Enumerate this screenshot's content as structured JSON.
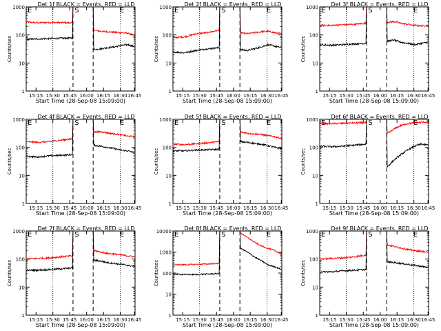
{
  "chart_data": [
    {
      "type": "line",
      "title": "Det 1f BLACK = Events, RED = LLD",
      "xlabel": "Start Time (28-Sep-08 15:09:00)",
      "ylabel": "Counts/sec",
      "yscale": "log",
      "ylim": [
        1,
        1000
      ],
      "xlim": [
        0,
        100
      ],
      "xticklabels": [
        "15:15",
        "15:30",
        "15:45",
        "16:00",
        "16:15",
        "16:30",
        "16:45"
      ],
      "yticklabels": [
        "1",
        "10",
        "100",
        "1000"
      ],
      "markers": {
        "E_left": "E",
        "S": "S",
        "E_right": "E"
      },
      "series": [
        {
          "name": "LLD",
          "color": "#ff0000",
          "pre": [
            290,
            270,
            280,
            275,
            270
          ],
          "post": [
            150,
            135,
            130,
            125,
            120,
            115,
            95
          ]
        },
        {
          "name": "Events",
          "color": "#000000",
          "pre": [
            70,
            72,
            74,
            76,
            78
          ],
          "post": [
            30,
            32,
            35,
            37,
            42,
            45,
            38
          ]
        }
      ]
    },
    {
      "type": "line",
      "title": "Det 2f BLACK = Events, RED = LLD",
      "xlabel": "Start Time (28-Sep-08 15:09:00)",
      "ylabel": "Counts/sec",
      "yscale": "log",
      "ylim": [
        1,
        1000
      ],
      "xlim": [
        0,
        100
      ],
      "xticklabels": [
        "15:15",
        "15:30",
        "15:45",
        "16:00",
        "16:15",
        "16:30",
        "16:45"
      ],
      "yticklabels": [
        "1",
        "10",
        "100",
        "1000"
      ],
      "markers": {
        "E_left": "E",
        "S": "S",
        "E_right": "E"
      },
      "series": [
        {
          "name": "LLD",
          "color": "#ff0000",
          "pre": [
            80,
            85,
            110,
            120,
            150
          ],
          "post": [
            120,
            110,
            120,
            130,
            135,
            120,
            110
          ]
        },
        {
          "name": "Events",
          "color": "#000000",
          "pre": [
            25,
            23,
            28,
            32,
            35
          ],
          "post": [
            30,
            28,
            32,
            37,
            45,
            40,
            35
          ]
        }
      ]
    },
    {
      "type": "line",
      "title": "Det 3f BLACK = Events, RED = LLD",
      "xlabel": "Start Time (28-Sep-08 15:09:00)",
      "ylabel": "Counts/sec",
      "yscale": "log",
      "ylim": [
        1,
        1000
      ],
      "xlim": [
        0,
        100
      ],
      "xticklabels": [
        "15:15",
        "15:30",
        "15:45",
        "16:00",
        "16:15",
        "16:30",
        "16:45"
      ],
      "yticklabels": [
        "1",
        "10",
        "100",
        "1000"
      ],
      "markers": {
        "E_left": "E",
        "S": "S",
        "E_right": "E"
      },
      "series": [
        {
          "name": "LLD",
          "color": "#ff0000",
          "pre": [
            220,
            220,
            230,
            240,
            260
          ],
          "post": [
            280,
            300,
            260,
            240,
            220,
            210,
            220
          ]
        },
        {
          "name": "Events",
          "color": "#000000",
          "pre": [
            45,
            43,
            45,
            48,
            50
          ],
          "post": [
            60,
            65,
            55,
            50,
            45,
            50,
            55
          ]
        }
      ]
    },
    {
      "type": "line",
      "title": "Det 4f BLACK = Events, RED = LLD",
      "xlabel": "Start Time (28-Sep-08 15:09:00)",
      "ylabel": "Counts/sec",
      "yscale": "log",
      "ylim": [
        1,
        1000
      ],
      "xlim": [
        0,
        100
      ],
      "xticklabels": [
        "15:15",
        "15:30",
        "15:45",
        "16:00",
        "16:15",
        "16:30",
        "16:45"
      ],
      "yticklabels": [
        "1",
        "10",
        "100",
        "1000"
      ],
      "markers": {
        "E_left": "E",
        "S": "S",
        "E_right": "E"
      },
      "series": [
        {
          "name": "LLD",
          "color": "#ff0000",
          "pre": [
            160,
            150,
            160,
            180,
            200
          ],
          "post": [
            350,
            360,
            330,
            300,
            280,
            250,
            240
          ]
        },
        {
          "name": "Events",
          "color": "#000000",
          "pre": [
            48,
            45,
            50,
            52,
            55
          ],
          "post": [
            120,
            110,
            100,
            90,
            80,
            75,
            65
          ]
        }
      ]
    },
    {
      "type": "line",
      "title": "Det 5f BLACK = Events, RED = LLD",
      "xlabel": "Start Time (28-Sep-08 15:09:00)",
      "ylabel": "Counts/sec",
      "yscale": "log",
      "ylim": [
        1,
        1000
      ],
      "xlim": [
        0,
        100
      ],
      "xticklabels": [
        "15:15",
        "15:30",
        "15:45",
        "16:00",
        "16:15",
        "16:30",
        "16:45"
      ],
      "yticklabels": [
        "1",
        "10",
        "100",
        "1000"
      ],
      "markers": {
        "E_left": "E",
        "S": "S",
        "E_right": "E"
      },
      "series": [
        {
          "name": "LLD",
          "color": "#ff0000",
          "pre": [
            130,
            125,
            135,
            145,
            160
          ],
          "post": [
            350,
            320,
            300,
            290,
            260,
            240,
            210
          ]
        },
        {
          "name": "Events",
          "color": "#000000",
          "pre": [
            75,
            75,
            80,
            82,
            85
          ],
          "post": [
            160,
            150,
            140,
            130,
            115,
            100,
            90
          ]
        }
      ]
    },
    {
      "type": "line",
      "title": "Det 6f BLACK = Events, RED = LLD",
      "xlabel": "Start Time (28-Sep-08 15:09:00)",
      "ylabel": "Counts/sec",
      "yscale": "log",
      "ylim": [
        1,
        1000
      ],
      "xlim": [
        0,
        100
      ],
      "xticklabels": [
        "15:15",
        "15:30",
        "15:45",
        "16:00",
        "16:15",
        "16:30",
        "16:45"
      ],
      "yticklabels": [
        "1",
        "10",
        "100",
        "1000"
      ],
      "markers": {
        "E_left": "E",
        "S": "S",
        "E_right": "E"
      },
      "series": [
        {
          "name": "LLD",
          "color": "#ff0000",
          "pre": [
            700,
            700,
            720,
            740,
            760
          ],
          "post": [
            300,
            450,
            600,
            700,
            750,
            780,
            800
          ]
        },
        {
          "name": "Events",
          "color": "#000000",
          "pre": [
            110,
            105,
            110,
            120,
            130
          ],
          "post": [
            20,
            35,
            55,
            80,
            110,
            130,
            120
          ]
        }
      ]
    },
    {
      "type": "line",
      "title": "Det 7f BLACK = Events, RED = LLD",
      "xlabel": "Start Time (28-Sep-08 15:09:00)",
      "ylabel": "Counts/sec",
      "yscale": "log",
      "ylim": [
        1,
        1000
      ],
      "xlim": [
        0,
        100
      ],
      "xticklabels": [
        "15:15",
        "15:30",
        "15:45",
        "16:00",
        "16:15",
        "16:30",
        "16:45"
      ],
      "yticklabels": [
        "1",
        "10",
        "100",
        "1000"
      ],
      "markers": {
        "E_left": "E",
        "S": "S",
        "E_right": "E"
      },
      "series": [
        {
          "name": "LLD",
          "color": "#ff0000",
          "pre": [
            100,
            105,
            110,
            120,
            130
          ],
          "post": [
            200,
            180,
            160,
            150,
            140,
            130,
            120
          ]
        },
        {
          "name": "Events",
          "color": "#000000",
          "pre": [
            40,
            40,
            42,
            45,
            48
          ],
          "post": [
            90,
            85,
            75,
            70,
            65,
            60,
            55
          ]
        }
      ]
    },
    {
      "type": "line",
      "title": "Det 8f BLACK = Events, RED = LLD",
      "xlabel": "Start Time (28-Sep-08 15:09:00)",
      "ylabel": "Counts/sec",
      "yscale": "log",
      "ylim": [
        1,
        10000
      ],
      "xlim": [
        0,
        100
      ],
      "xticklabels": [
        "15:15",
        "15:30",
        "15:45",
        "16:00",
        "16:15",
        "16:30",
        "16:45"
      ],
      "yticklabels": [
        "1",
        "10",
        "100",
        "1000",
        "10000"
      ],
      "markers": {
        "E_left": "E",
        "S": "S",
        "E_right": "E"
      },
      "series": [
        {
          "name": "LLD",
          "color": "#ff0000",
          "pre": [
            250,
            250,
            260,
            270,
            290
          ],
          "post": [
            8000,
            5000,
            3000,
            2000,
            1500,
            1200,
            800
          ]
        },
        {
          "name": "Events",
          "color": "#000000",
          "pre": [
            90,
            85,
            85,
            90,
            95
          ],
          "post": [
            1500,
            1000,
            600,
            400,
            250,
            200,
            150
          ]
        }
      ]
    },
    {
      "type": "line",
      "title": "Det 9f BLACK = Events, RED = LLD",
      "xlabel": "Start Time (28-Sep-08 15:09:00)",
      "ylabel": "Counts/sec",
      "yscale": "log",
      "ylim": [
        1,
        1000
      ],
      "xlim": [
        0,
        100
      ],
      "xticklabels": [
        "15:15",
        "15:30",
        "15:45",
        "16:00",
        "16:15",
        "16:30",
        "16:45"
      ],
      "yticklabels": [
        "1",
        "10",
        "100",
        "1000"
      ],
      "markers": {
        "E_left": "E",
        "S": "S",
        "E_right": "E"
      },
      "series": [
        {
          "name": "LLD",
          "color": "#ff0000",
          "pre": [
            100,
            105,
            110,
            120,
            140
          ],
          "post": [
            320,
            280,
            250,
            220,
            200,
            190,
            170
          ]
        },
        {
          "name": "Events",
          "color": "#000000",
          "pre": [
            35,
            35,
            38,
            40,
            42
          ],
          "post": [
            80,
            75,
            70,
            65,
            60,
            55,
            50
          ]
        }
      ]
    }
  ]
}
